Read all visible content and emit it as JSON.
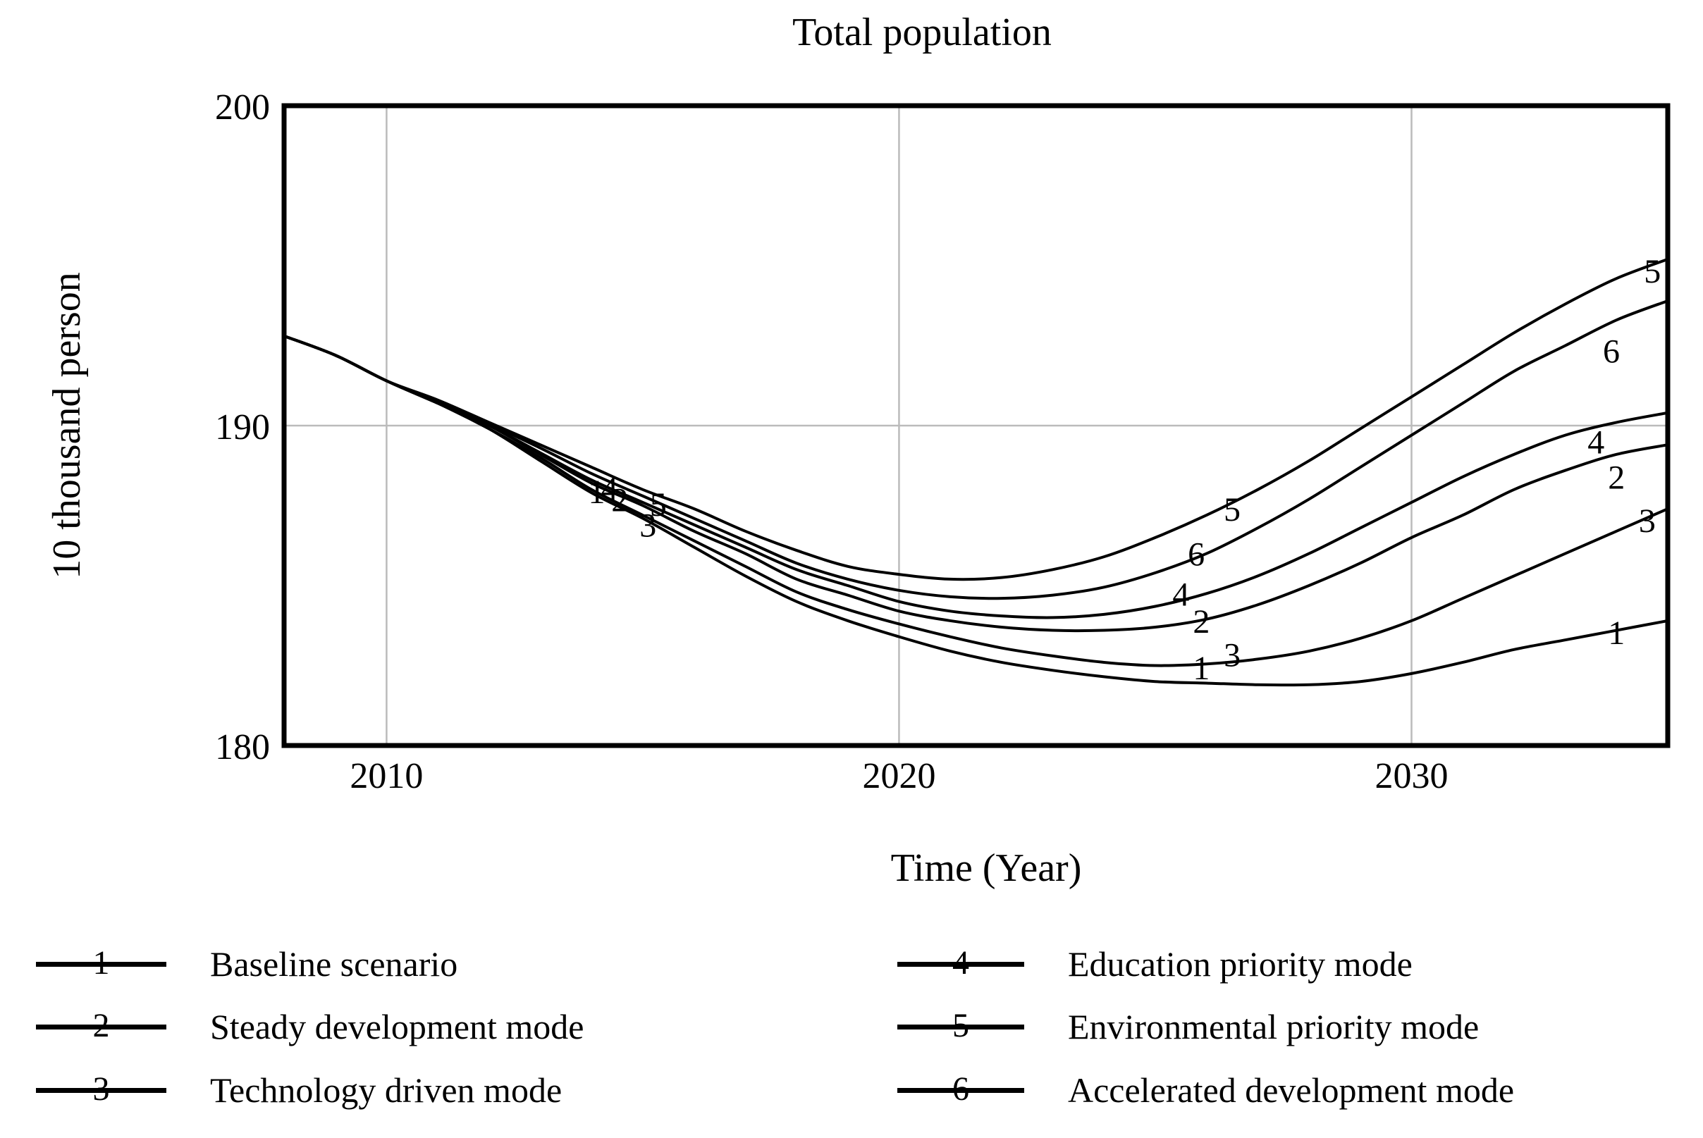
{
  "chart_data": {
    "type": "line",
    "title": "Total population",
    "xlabel": "Time (Year)",
    "ylabel": "10 thousand person",
    "xlim": [
      2008,
      2035
    ],
    "ylim": [
      180,
      200
    ],
    "x_ticks": [
      "2010",
      "2020",
      "2030"
    ],
    "x_tick_years": [
      2010,
      2020,
      2030
    ],
    "y_ticks": [
      "200",
      "190",
      "180"
    ],
    "y_tick_values": [
      200,
      190,
      180
    ],
    "grid": {
      "x_years": [
        2010,
        2020,
        2030
      ],
      "y_values": [
        190
      ],
      "on": true
    },
    "legend_position": "bottom, two columns",
    "years": [
      2008,
      2009,
      2010,
      2011,
      2012,
      2013,
      2014,
      2015,
      2016,
      2017,
      2018,
      2019,
      2020,
      2021,
      2022,
      2023,
      2024,
      2025,
      2026,
      2027,
      2028,
      2029,
      2030,
      2031,
      2032,
      2033,
      2034,
      2035
    ],
    "series": [
      {
        "id": "1",
        "name": "Baseline scenario",
        "values": [
          192.8,
          192.2,
          191.4,
          190.7,
          189.9,
          188.9,
          187.9,
          187.1,
          186.2,
          185.3,
          184.5,
          183.9,
          183.4,
          182.95,
          182.6,
          182.35,
          182.15,
          182.0,
          181.95,
          181.9,
          181.9,
          182.0,
          182.25,
          182.6,
          183.0,
          183.3,
          183.6,
          183.9
        ]
      },
      {
        "id": "2",
        "name": "Steady development mode",
        "values": [
          192.8,
          192.2,
          191.4,
          190.7,
          190.0,
          189.1,
          188.2,
          187.5,
          186.7,
          186.0,
          185.2,
          184.7,
          184.2,
          183.9,
          183.7,
          183.6,
          183.6,
          183.7,
          183.95,
          184.4,
          185.0,
          185.7,
          186.5,
          187.2,
          188.0,
          188.6,
          189.1,
          189.4
        ]
      },
      {
        "id": "3",
        "name": "Technology driven mode",
        "values": [
          192.8,
          192.2,
          191.4,
          190.7,
          189.9,
          189.0,
          188.0,
          187.2,
          186.4,
          185.6,
          184.8,
          184.25,
          183.8,
          183.4,
          183.05,
          182.8,
          182.6,
          182.5,
          182.55,
          182.7,
          182.95,
          183.35,
          183.9,
          184.6,
          185.3,
          186.0,
          186.7,
          187.4
        ]
      },
      {
        "id": "4",
        "name": "Education priority mode",
        "values": [
          192.8,
          192.2,
          191.4,
          190.7,
          190.0,
          189.15,
          188.3,
          187.6,
          186.9,
          186.2,
          185.5,
          185.0,
          184.5,
          184.2,
          184.05,
          184.0,
          184.1,
          184.35,
          184.75,
          185.3,
          186.0,
          186.8,
          187.6,
          188.4,
          189.1,
          189.7,
          190.1,
          190.4
        ]
      },
      {
        "id": "5",
        "name": "Environmental priority mode",
        "values": [
          192.8,
          192.2,
          191.4,
          190.8,
          190.1,
          189.4,
          188.7,
          188.0,
          187.4,
          186.7,
          186.1,
          185.6,
          185.35,
          185.2,
          185.25,
          185.5,
          185.9,
          186.5,
          187.2,
          188.0,
          188.9,
          189.9,
          190.9,
          191.9,
          192.9,
          193.8,
          194.6,
          195.2
        ]
      },
      {
        "id": "6",
        "name": "Accelerated development mode",
        "values": [
          192.8,
          192.2,
          191.4,
          190.75,
          190.05,
          189.3,
          188.5,
          187.8,
          187.1,
          186.4,
          185.7,
          185.2,
          184.85,
          184.65,
          184.6,
          184.7,
          184.95,
          185.4,
          186.0,
          186.8,
          187.7,
          188.7,
          189.7,
          190.7,
          191.7,
          192.5,
          193.3,
          193.9
        ]
      }
    ],
    "curve_labels": [
      {
        "series": "1",
        "year": 2014.1,
        "value": 187.95
      },
      {
        "series": "4",
        "year": 2014.35,
        "value": 188.05
      },
      {
        "series": "2",
        "year": 2014.55,
        "value": 187.7
      },
      {
        "series": "5",
        "year": 2015.3,
        "value": 187.55
      },
      {
        "series": "3",
        "year": 2015.1,
        "value": 186.9
      },
      {
        "series": "5",
        "year": 2026.5,
        "value": 187.4
      },
      {
        "series": "6",
        "year": 2025.8,
        "value": 186.0
      },
      {
        "series": "4",
        "year": 2025.5,
        "value": 184.75
      },
      {
        "series": "2",
        "year": 2025.9,
        "value": 183.9
      },
      {
        "series": "3",
        "year": 2026.5,
        "value": 182.85
      },
      {
        "series": "1",
        "year": 2025.9,
        "value": 182.45
      },
      {
        "series": "5",
        "year": 2034.7,
        "value": 194.85
      },
      {
        "series": "6",
        "year": 2033.9,
        "value": 192.35
      },
      {
        "series": "4",
        "year": 2033.6,
        "value": 189.5
      },
      {
        "series": "2",
        "year": 2034.0,
        "value": 188.4
      },
      {
        "series": "3",
        "year": 2034.6,
        "value": 187.05
      },
      {
        "series": "1",
        "year": 2034.0,
        "value": 183.55
      }
    ],
    "colors": {
      "line": "#000000",
      "grid": "#bbbbbb",
      "frame": "#000000",
      "background": "#ffffff",
      "text": "#000000"
    }
  }
}
